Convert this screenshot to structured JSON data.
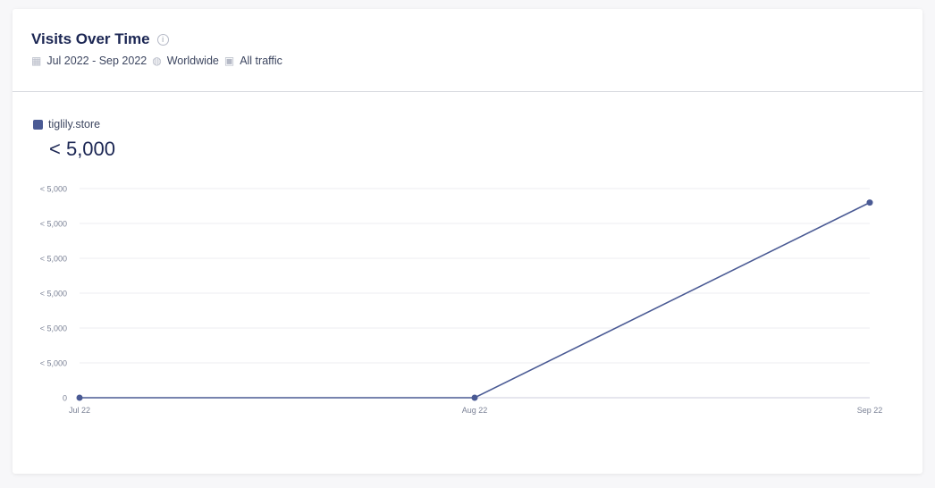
{
  "header": {
    "title": "Visits Over Time",
    "info_icon": "info-icon",
    "date_range": "Jul 2022 - Sep 2022",
    "region": "Worldwide",
    "traffic": "All traffic"
  },
  "legend": {
    "site": "tiglily.store",
    "value": "< 5,000",
    "color": "#4a5a94"
  },
  "chart_data": {
    "type": "line",
    "categories": [
      "Jul 22",
      "Aug 22",
      "Sep 22"
    ],
    "series": [
      {
        "name": "tiglily.store",
        "values": [
          0,
          0,
          5.6
        ]
      }
    ],
    "y_ticks": [
      0,
      1,
      2,
      3,
      4,
      5,
      6
    ],
    "y_tick_labels": [
      "0",
      "< 5,000",
      "< 5,000",
      "< 5,000",
      "< 5,000",
      "< 5,000",
      "< 5,000"
    ],
    "ylim": [
      0,
      6
    ],
    "grid": true,
    "color": "#4a5a94"
  }
}
